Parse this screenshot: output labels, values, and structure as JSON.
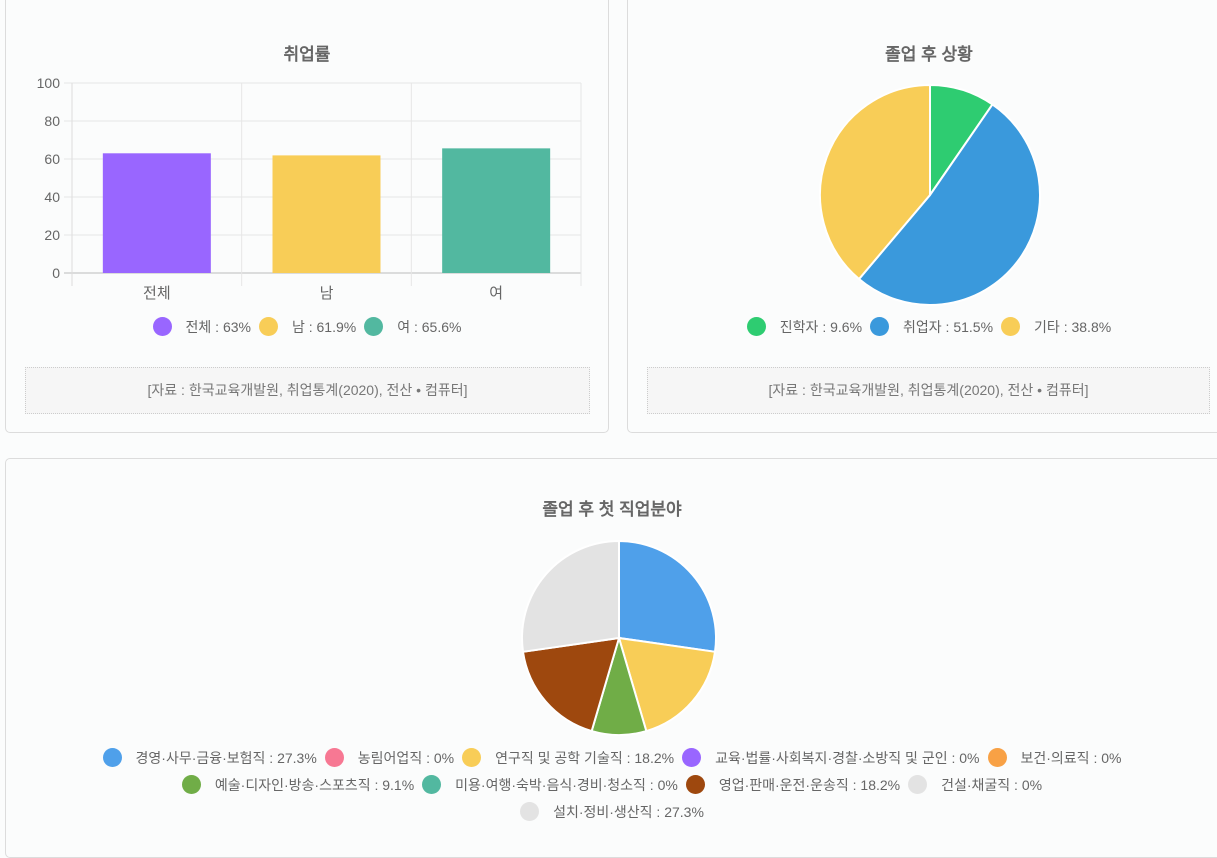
{
  "chart_data": [
    {
      "type": "bar",
      "title": "취업률",
      "categories": [
        "전체",
        "남",
        "여"
      ],
      "values": [
        63,
        61.9,
        65.6
      ],
      "colors": [
        "#9966ff",
        "#f8cd57",
        "#52b8a0"
      ],
      "ylim": [
        0,
        100
      ],
      "yticks": [
        0,
        20,
        40,
        60,
        80,
        100
      ],
      "grid": true,
      "legend_position": "bottom",
      "xlabel": "",
      "ylabel": ""
    },
    {
      "type": "pie",
      "title": "졸업 후 상황",
      "labels": [
        "진학자",
        "취업자",
        "기타"
      ],
      "values": [
        9.6,
        51.5,
        38.8
      ],
      "colors": [
        "#2ecc71",
        "#3a99dc",
        "#f8cd57"
      ],
      "legend_position": "bottom"
    },
    {
      "type": "pie",
      "title": "졸업 후 첫 직업분야",
      "labels": [
        "경영·사무·금융·보험직",
        "농림어업직",
        "연구직 및 공학 기술직",
        "교육·법률·사회복지·경찰·소방직 및 군인",
        "보건·의료직",
        "예술·디자인·방송·스포츠직",
        "미용·여행·숙박·음식·경비·청소직",
        "영업·판매·운전·운송직",
        "건설·채굴직",
        "설치·정비·생산직"
      ],
      "values": [
        27.3,
        0,
        18.2,
        0,
        0,
        9.1,
        0,
        18.2,
        0,
        27.3
      ],
      "colors": [
        "#4fa0ea",
        "#f77893",
        "#f8cd57",
        "#9966ff",
        "#f8a145",
        "#70ad47",
        "#52b8a0",
        "#9e480e",
        "#e3e3e3",
        "#e3e3e3"
      ],
      "legend_position": "bottom"
    }
  ],
  "cards": {
    "employment": {
      "title": "취업률",
      "legend": [
        {
          "text": "전체 : 63%",
          "color": "#9966ff"
        },
        {
          "text": "남 : 61.9%",
          "color": "#f8cd57"
        },
        {
          "text": "여 : 65.6%",
          "color": "#52b8a0"
        }
      ],
      "source": "[자료 : 한국교육개발원, 취업통계(2020), 전산 • 컴퓨터]"
    },
    "after_graduation": {
      "title": "졸업 후 상황",
      "legend": [
        {
          "text": "진학자 : 9.6%",
          "color": "#2ecc71"
        },
        {
          "text": "취업자 : 51.5%",
          "color": "#3a99dc"
        },
        {
          "text": "기타 : 38.8%",
          "color": "#f8cd57"
        }
      ],
      "source": "[자료 : 한국교육개발원, 취업통계(2020), 전산 • 컴퓨터]"
    },
    "first_job": {
      "title": "졸업 후 첫 직업분야",
      "legend": [
        {
          "text": "경영·사무·금융·보험직 : 27.3%",
          "color": "#4fa0ea"
        },
        {
          "text": "농림어업직 : 0%",
          "color": "#f77893"
        },
        {
          "text": "연구직 및 공학 기술직 : 18.2%",
          "color": "#f8cd57"
        },
        {
          "text": "교육·법률·사회복지·경찰·소방직 및 군인 : 0%",
          "color": "#9966ff"
        },
        {
          "text": "보건·의료직 : 0%",
          "color": "#f8a145"
        },
        {
          "text": "예술·디자인·방송·스포츠직 : 9.1%",
          "color": "#70ad47"
        },
        {
          "text": "미용·여행·숙박·음식·경비·청소직 : 0%",
          "color": "#52b8a0"
        },
        {
          "text": "영업·판매·운전·운송직 : 18.2%",
          "color": "#9e480e"
        },
        {
          "text": "건설·채굴직 : 0%",
          "color": "#e3e3e3"
        },
        {
          "text": "설치·정비·생산직 : 27.3%",
          "color": "#e3e3e3"
        }
      ]
    }
  }
}
